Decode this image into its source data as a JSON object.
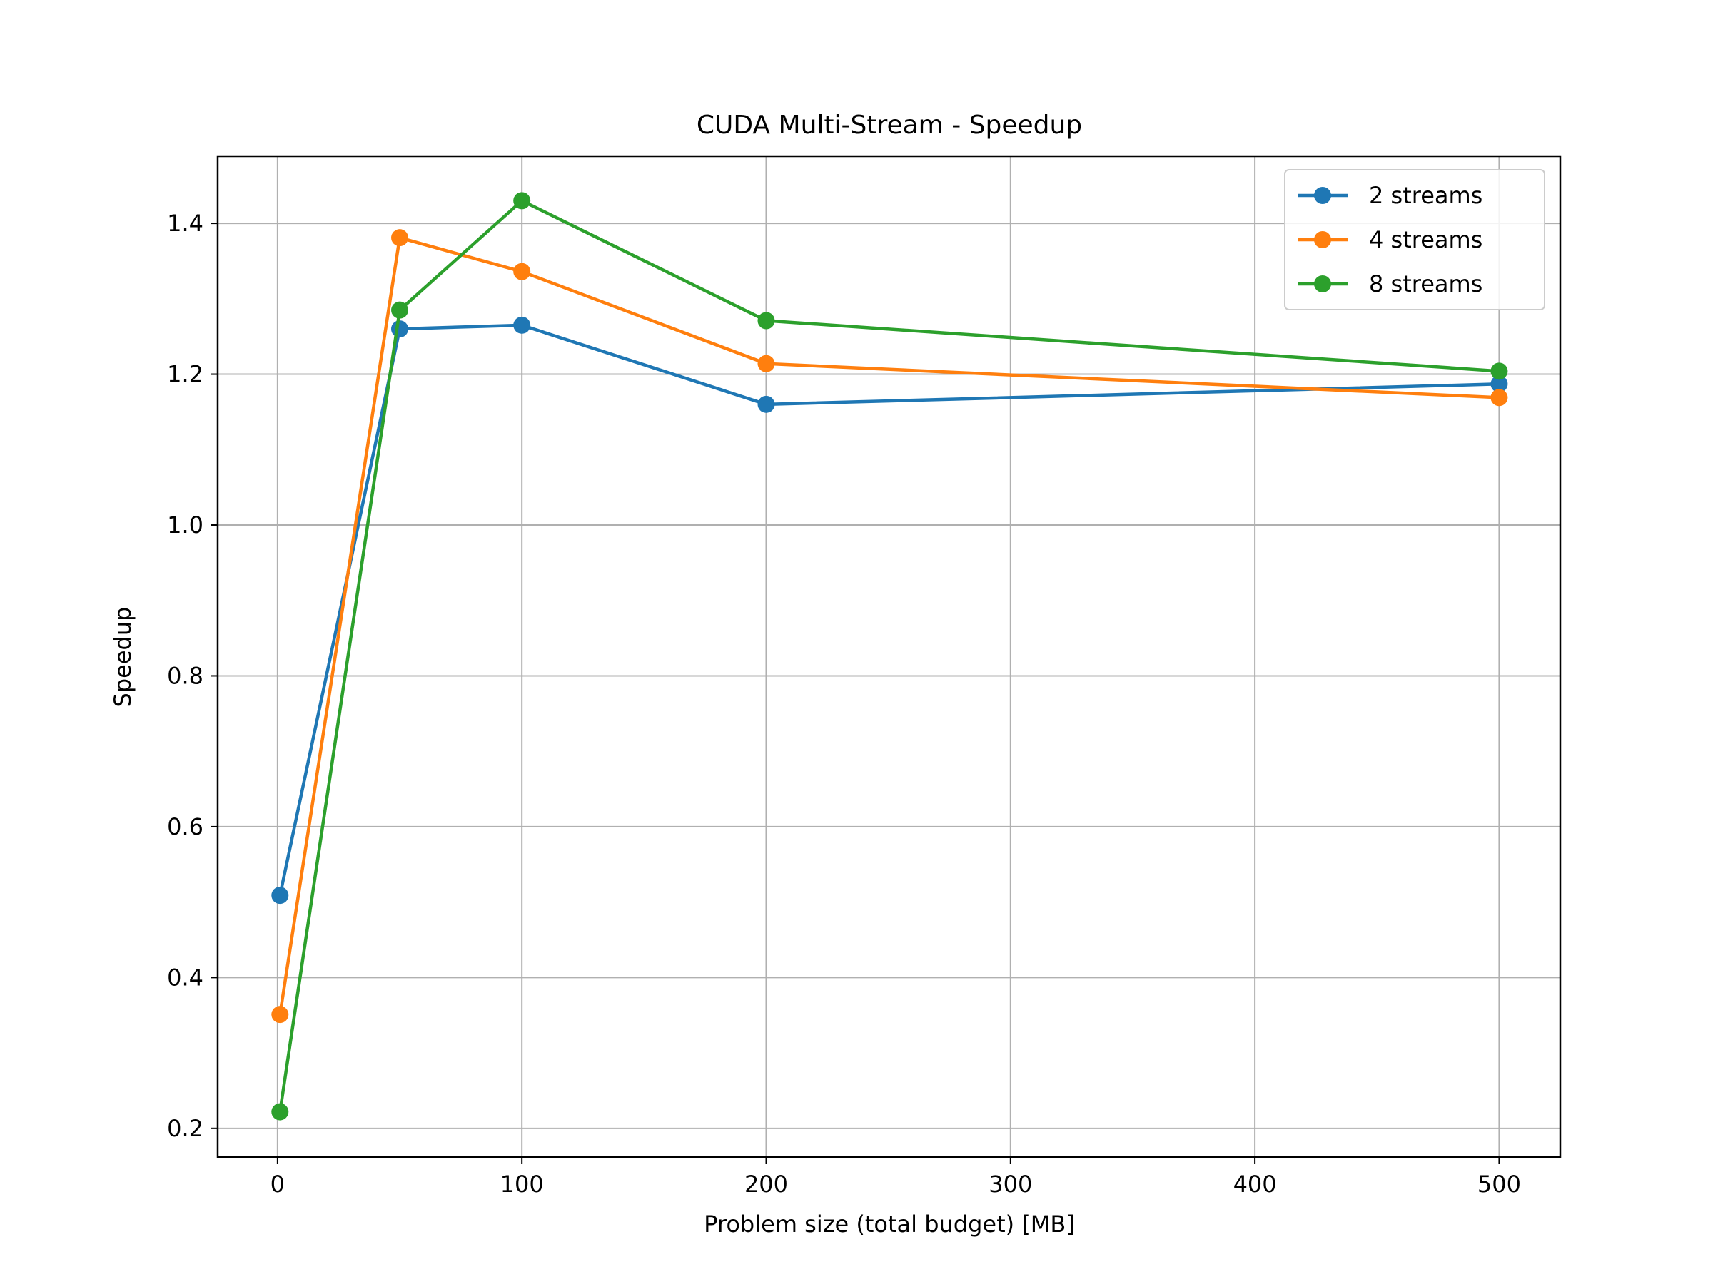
{
  "chart_data": {
    "type": "line",
    "title": "CUDA Multi-Stream - Speedup",
    "xlabel": "Problem size (total budget) [MB]",
    "ylabel": "Speedup",
    "xlim": [
      -24.5,
      525
    ],
    "ylim": [
      0.162,
      1.489
    ],
    "xticks": [
      0,
      100,
      200,
      300,
      400,
      500
    ],
    "xtick_labels": [
      "0",
      "100",
      "200",
      "300",
      "400",
      "500"
    ],
    "yticks": [
      0.2,
      0.4,
      0.6,
      0.8,
      1.0,
      1.2,
      1.4
    ],
    "ytick_labels": [
      "0.2",
      "0.4",
      "0.6",
      "0.8",
      "1.0",
      "1.2",
      "1.4"
    ],
    "grid": true,
    "legend_position": "top-right",
    "x": [
      1,
      50,
      100,
      200,
      500
    ],
    "series": [
      {
        "name": "2 streams",
        "color": "#1f77b4",
        "values": [
          0.509,
          1.26,
          1.265,
          1.16,
          1.187
        ]
      },
      {
        "name": "4 streams",
        "color": "#ff7f0e",
        "values": [
          0.351,
          1.381,
          1.336,
          1.214,
          1.169
        ]
      },
      {
        "name": "8 streams",
        "color": "#2ca02c",
        "values": [
          0.222,
          1.285,
          1.43,
          1.271,
          1.204
        ]
      }
    ]
  }
}
